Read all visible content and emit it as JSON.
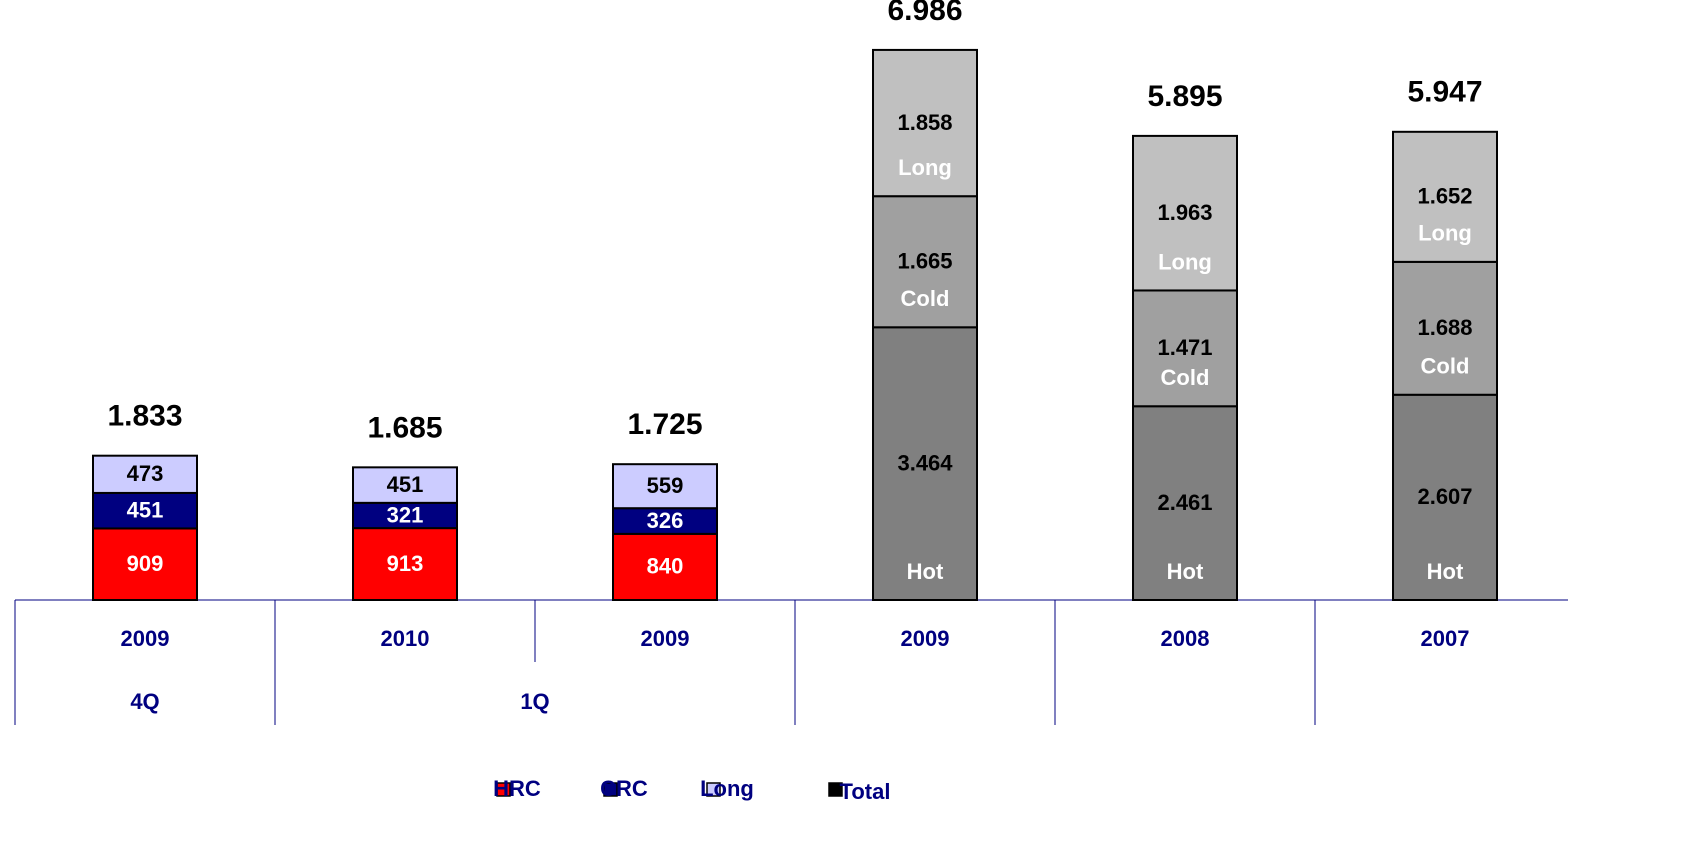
{
  "chart_data": {
    "type": "stacked_bar",
    "categories": [
      "2009",
      "2010",
      "2009",
      "2009",
      "2008",
      "2007"
    ],
    "category_groups": [
      {
        "label": "4Q",
        "count": 1
      },
      {
        "label": "1Q",
        "count": 2
      },
      {
        "count": 3
      }
    ],
    "series": [
      {
        "name": "HRC",
        "color": "#ff0000",
        "colors": [
          "#ff0000",
          "#ff0000",
          "#ff0000",
          "#808080",
          "#808080",
          "#808080"
        ],
        "values": [
          909,
          913,
          840,
          3464,
          2461,
          2607
        ],
        "value_labels": [
          "909",
          "913",
          "840",
          "3.464",
          "2.461",
          "2.607"
        ],
        "point_labels": [
          null,
          null,
          null,
          "Hot",
          "Hot",
          "Hot"
        ]
      },
      {
        "name": "CRC",
        "color": "#000080",
        "colors": [
          "#000080",
          "#000080",
          "#000080",
          "#a0a0a0",
          "#a0a0a0",
          "#a0a0a0"
        ],
        "values": [
          451,
          321,
          326,
          1665,
          1471,
          1688
        ],
        "value_labels": [
          "451",
          "321",
          "326",
          "1.665",
          "1.471",
          "1.688"
        ],
        "point_labels": [
          null,
          null,
          null,
          "Cold",
          "Cold",
          "Cold"
        ]
      },
      {
        "name": "Long",
        "color": "#ccccff",
        "colors": [
          "#ccccff",
          "#ccccff",
          "#ccccff",
          "#c0c0c0",
          "#c0c0c0",
          "#c0c0c0"
        ],
        "values": [
          473,
          451,
          559,
          1858,
          1963,
          1652
        ],
        "value_labels": [
          "473",
          "451",
          "559",
          "1.858",
          "1.963",
          "1.652"
        ],
        "point_labels": [
          null,
          null,
          null,
          "Long",
          "Long",
          "Long"
        ]
      },
      {
        "name": "Total",
        "color": "#000000",
        "role": "total",
        "values": [
          1833,
          1685,
          1725,
          6986,
          5895,
          5947
        ],
        "value_labels": [
          "1.833",
          "1.685",
          "1.725",
          "6.986",
          "5.895",
          "5.947"
        ]
      }
    ]
  }
}
